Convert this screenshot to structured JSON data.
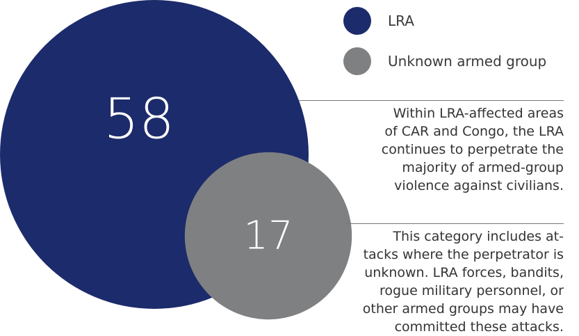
{
  "chart_data": {
    "type": "bubble",
    "series": [
      {
        "name": "LRA",
        "value": 58,
        "color": "#1c2b6b"
      },
      {
        "name": "Unknown armed group",
        "value": 17,
        "color": "#7f8082"
      }
    ],
    "legend_position": "top-right"
  },
  "legend": [
    {
      "label": "LRA",
      "color": "#1c2b6b"
    },
    {
      "label": "Unknown armed group",
      "color": "#7f8082"
    }
  ],
  "notes": [
    {
      "lines": [
        "Within LRA-affected areas",
        "of CAR and Congo, the LRA",
        "continues to perpetrate the",
        "majority of armed-group",
        "violence against civilians."
      ]
    },
    {
      "lines": [
        "This category includes at-",
        "tacks where the perpetrator is",
        "unknown. LRA forces, bandits,",
        "rogue military personnel, or",
        "other armed groups may have",
        "committed these attacks."
      ]
    }
  ]
}
